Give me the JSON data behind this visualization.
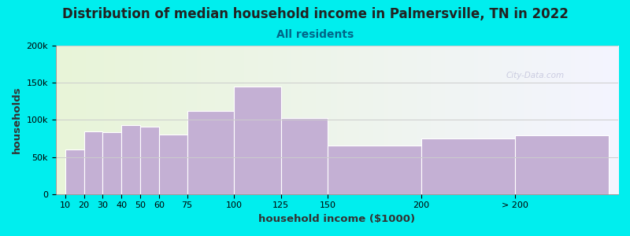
{
  "title": "Distribution of median household income in Palmersville, TN in 2022",
  "subtitle": "All residents",
  "xlabel": "household income ($1000)",
  "ylabel": "households",
  "background_color": "#00EEEE",
  "bar_color": "#C4B0D4",
  "bar_edgecolor": "#FFFFFF",
  "bin_lefts": [
    10,
    20,
    30,
    40,
    50,
    60,
    75,
    100,
    125,
    150,
    200,
    250
  ],
  "bin_rights": [
    20,
    30,
    40,
    50,
    60,
    75,
    100,
    125,
    150,
    200,
    250,
    300
  ],
  "bin_labels": [
    "10",
    "20",
    "30",
    "40",
    "50",
    "60",
    "75",
    "100",
    "125",
    "150",
    "200",
    "> 200"
  ],
  "values": [
    60000,
    85000,
    83000,
    93000,
    91000,
    80000,
    112000,
    145000,
    103000,
    65000,
    75000,
    79000
  ],
  "xlim": [
    5,
    305
  ],
  "xtick_positions": [
    10,
    20,
    30,
    40,
    50,
    60,
    75,
    100,
    125,
    150,
    200,
    250
  ],
  "xtick_labels": [
    "10",
    "20",
    "30",
    "40",
    "50",
    "60",
    "75",
    "100",
    "125",
    "150",
    "200",
    "> 200"
  ],
  "ylim": [
    0,
    200000
  ],
  "yticks": [
    0,
    50000,
    100000,
    150000,
    200000
  ],
  "ytick_labels": [
    "0",
    "50k",
    "100k",
    "150k",
    "200k"
  ],
  "title_fontsize": 12,
  "subtitle_fontsize": 10,
  "axis_label_fontsize": 9.5,
  "tick_fontsize": 8,
  "watermark_text": "City-Data.com",
  "plot_bg_color_left": "#E8F5D8",
  "plot_bg_color_right": "#F4F4FF",
  "grid_color": "#CCCCCC"
}
